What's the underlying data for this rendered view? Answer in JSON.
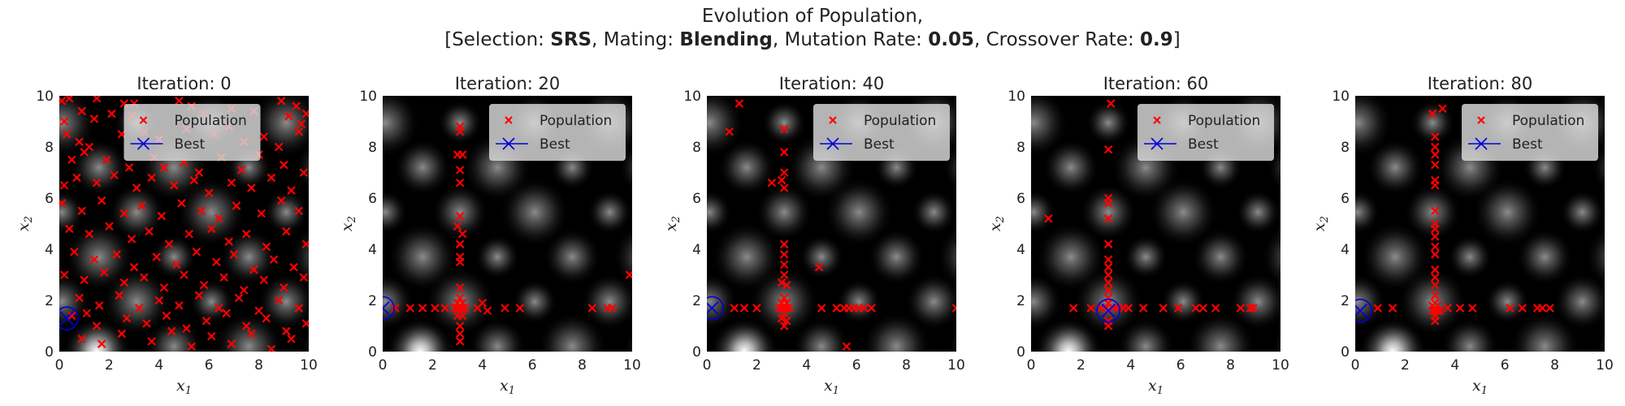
{
  "suptitle": {
    "line1": "Evolution of Population,",
    "selection_label": "Selection:",
    "selection_value": "SRS",
    "mating_label": "Mating:",
    "mating_value": "Blending",
    "mutation_label": "Mutation Rate:",
    "mutation_value": "0.05",
    "crossover_label": "Crossover Rate:",
    "crossover_value": "0.9"
  },
  "colors": {
    "population": "#ff0000",
    "best": "#0000dd",
    "background_peak": "#ffffff",
    "background_low": "#000000"
  },
  "chart_data": [
    {
      "type": "scatter",
      "title": "Iteration:  0",
      "xlabel": "x1",
      "ylabel": "x2",
      "xlim": [
        0,
        10
      ],
      "ylim": [
        0,
        10
      ],
      "xticks": [
        0,
        2,
        4,
        6,
        8,
        10
      ],
      "yticks": [
        0,
        2,
        4,
        6,
        8,
        10
      ],
      "legend": {
        "placement": "top-center",
        "entries": [
          "Population",
          "Best"
        ]
      },
      "best": [
        0.3,
        1.3
      ],
      "population": [
        [
          0.1,
          9.8
        ],
        [
          0.4,
          9.9
        ],
        [
          1.5,
          9.9
        ],
        [
          2.6,
          9.7
        ],
        [
          3.0,
          9.7
        ],
        [
          4.8,
          9.8
        ],
        [
          5.3,
          9.6
        ],
        [
          8.9,
          9.8
        ],
        [
          9.5,
          9.6
        ],
        [
          9.9,
          9.3
        ],
        [
          0.2,
          9.0
        ],
        [
          0.9,
          9.4
        ],
        [
          1.4,
          9.1
        ],
        [
          2.1,
          9.3
        ],
        [
          2.9,
          9.2
        ],
        [
          5.8,
          9.3
        ],
        [
          6.9,
          9.5
        ],
        [
          7.8,
          9.4
        ],
        [
          9.2,
          9.2
        ],
        [
          9.7,
          8.9
        ],
        [
          0.3,
          8.5
        ],
        [
          0.8,
          8.2
        ],
        [
          1.2,
          8.0
        ],
        [
          2.5,
          8.5
        ],
        [
          3.4,
          8.6
        ],
        [
          4.0,
          8.3
        ],
        [
          5.1,
          8.7
        ],
        [
          6.2,
          8.5
        ],
        [
          6.8,
          8.8
        ],
        [
          7.4,
          8.2
        ],
        [
          8.2,
          8.4
        ],
        [
          8.8,
          8.0
        ],
        [
          9.6,
          8.6
        ],
        [
          0.5,
          7.5
        ],
        [
          1.0,
          7.8
        ],
        [
          1.9,
          7.5
        ],
        [
          2.8,
          7.2
        ],
        [
          3.8,
          7.6
        ],
        [
          4.2,
          7.2
        ],
        [
          5.0,
          7.4
        ],
        [
          5.6,
          7.0
        ],
        [
          6.5,
          7.6
        ],
        [
          7.3,
          7.1
        ],
        [
          8.0,
          7.7
        ],
        [
          9.0,
          7.3
        ],
        [
          9.8,
          7.0
        ],
        [
          0.2,
          6.5
        ],
        [
          0.7,
          6.8
        ],
        [
          1.5,
          6.6
        ],
        [
          2.2,
          6.9
        ],
        [
          3.1,
          6.4
        ],
        [
          3.7,
          6.8
        ],
        [
          4.6,
          6.5
        ],
        [
          5.4,
          6.7
        ],
        [
          6.0,
          6.2
        ],
        [
          6.9,
          6.6
        ],
        [
          7.7,
          6.4
        ],
        [
          8.5,
          6.8
        ],
        [
          9.3,
          6.3
        ],
        [
          0.1,
          5.8
        ],
        [
          0.9,
          5.5
        ],
        [
          1.7,
          5.9
        ],
        [
          2.6,
          5.4
        ],
        [
          3.3,
          5.7
        ],
        [
          4.1,
          5.3
        ],
        [
          4.9,
          5.8
        ],
        [
          5.7,
          5.5
        ],
        [
          6.4,
          5.2
        ],
        [
          7.1,
          5.7
        ],
        [
          8.1,
          5.4
        ],
        [
          8.9,
          5.9
        ],
        [
          9.6,
          5.5
        ],
        [
          0.4,
          4.8
        ],
        [
          1.2,
          4.6
        ],
        [
          2.0,
          4.9
        ],
        [
          2.9,
          4.4
        ],
        [
          3.6,
          4.7
        ],
        [
          4.4,
          4.2
        ],
        [
          5.2,
          4.6
        ],
        [
          6.1,
          4.8
        ],
        [
          6.8,
          4.3
        ],
        [
          7.5,
          4.6
        ],
        [
          8.3,
          4.1
        ],
        [
          9.1,
          4.7
        ],
        [
          9.9,
          4.2
        ],
        [
          0.6,
          3.9
        ],
        [
          1.4,
          3.6
        ],
        [
          2.3,
          3.8
        ],
        [
          3.0,
          3.3
        ],
        [
          3.9,
          3.7
        ],
        [
          4.7,
          3.4
        ],
        [
          5.5,
          3.9
        ],
        [
          6.3,
          3.5
        ],
        [
          7.0,
          3.8
        ],
        [
          7.8,
          3.2
        ],
        [
          8.6,
          3.6
        ],
        [
          9.4,
          3.3
        ],
        [
          0.2,
          3.0
        ],
        [
          1.0,
          2.8
        ],
        [
          1.8,
          3.1
        ],
        [
          2.6,
          2.7
        ],
        [
          3.4,
          2.9
        ],
        [
          4.2,
          2.5
        ],
        [
          5.0,
          3.0
        ],
        [
          5.8,
          2.6
        ],
        [
          6.6,
          2.9
        ],
        [
          7.4,
          2.4
        ],
        [
          8.2,
          2.8
        ],
        [
          9.0,
          2.5
        ],
        [
          9.8,
          2.9
        ],
        [
          0.8,
          2.1
        ],
        [
          1.6,
          1.8
        ],
        [
          2.4,
          2.2
        ],
        [
          3.2,
          1.7
        ],
        [
          4.0,
          2.0
        ],
        [
          4.8,
          1.8
        ],
        [
          5.6,
          2.2
        ],
        [
          6.4,
          1.7
        ],
        [
          7.2,
          2.1
        ],
        [
          8.0,
          1.6
        ],
        [
          8.8,
          2.0
        ],
        [
          9.6,
          1.7
        ],
        [
          0.5,
          1.4
        ],
        [
          1.1,
          1.5
        ],
        [
          1.5,
          1.0
        ],
        [
          2.7,
          1.3
        ],
        [
          3.5,
          1.1
        ],
        [
          4.3,
          1.4
        ],
        [
          5.1,
          0.9
        ],
        [
          5.9,
          1.2
        ],
        [
          6.7,
          1.5
        ],
        [
          7.5,
          1.0
        ],
        [
          8.3,
          1.3
        ],
        [
          9.1,
          0.8
        ],
        [
          9.9,
          1.1
        ],
        [
          0.9,
          0.5
        ],
        [
          1.7,
          0.3
        ],
        [
          2.5,
          0.7
        ],
        [
          3.7,
          0.4
        ],
        [
          4.5,
          0.8
        ],
        [
          5.3,
          0.2
        ],
        [
          6.1,
          0.6
        ],
        [
          6.9,
          0.3
        ],
        [
          7.7,
          0.7
        ],
        [
          8.5,
          0.1
        ],
        [
          9.3,
          0.5
        ]
      ]
    },
    {
      "type": "scatter",
      "title": "Iteration:  20",
      "xlabel": "x1",
      "ylabel": "x2",
      "xlim": [
        0,
        10
      ],
      "ylim": [
        0,
        10
      ],
      "xticks": [
        0,
        2,
        4,
        6,
        8,
        10
      ],
      "yticks": [
        0,
        2,
        4,
        6,
        8,
        10
      ],
      "legend": {
        "placement": "top-right",
        "entries": [
          "Population",
          "Best"
        ]
      },
      "best": [
        0.0,
        1.7
      ],
      "population": [
        [
          3.1,
          8.8
        ],
        [
          3.1,
          8.6
        ],
        [
          3.0,
          7.7
        ],
        [
          3.2,
          7.7
        ],
        [
          3.1,
          7.1
        ],
        [
          3.1,
          6.6
        ],
        [
          3.1,
          5.3
        ],
        [
          3.0,
          4.9
        ],
        [
          3.2,
          4.6
        ],
        [
          3.1,
          4.2
        ],
        [
          3.1,
          3.7
        ],
        [
          3.1,
          3.5
        ],
        [
          3.1,
          2.5
        ],
        [
          3.1,
          2.1
        ],
        [
          3.0,
          1.9
        ],
        [
          3.2,
          1.9
        ],
        [
          2.9,
          1.7
        ],
        [
          3.0,
          1.7
        ],
        [
          3.1,
          1.7
        ],
        [
          3.2,
          1.7
        ],
        [
          3.3,
          1.7
        ],
        [
          3.1,
          1.5
        ],
        [
          3.0,
          1.4
        ],
        [
          3.2,
          1.4
        ],
        [
          3.1,
          1.0
        ],
        [
          3.1,
          0.7
        ],
        [
          3.1,
          0.4
        ],
        [
          0.5,
          1.7
        ],
        [
          1.1,
          1.7
        ],
        [
          1.6,
          1.7
        ],
        [
          2.1,
          1.7
        ],
        [
          2.5,
          1.7
        ],
        [
          3.8,
          1.7
        ],
        [
          4.2,
          1.6
        ],
        [
          4.0,
          1.9
        ],
        [
          4.9,
          1.7
        ],
        [
          5.5,
          1.7
        ],
        [
          8.4,
          1.7
        ],
        [
          9.0,
          1.7
        ],
        [
          9.2,
          1.7
        ],
        [
          9.9,
          3.0
        ]
      ]
    },
    {
      "type": "scatter",
      "title": "Iteration:  40",
      "xlabel": "x1",
      "ylabel": "x2",
      "xlim": [
        0,
        10
      ],
      "ylim": [
        0,
        10
      ],
      "xticks": [
        0,
        2,
        4,
        6,
        8,
        10
      ],
      "yticks": [
        0,
        2,
        4,
        6,
        8,
        10
      ],
      "legend": {
        "placement": "top-right",
        "entries": [
          "Population",
          "Best"
        ]
      },
      "best": [
        0.2,
        1.7
      ],
      "population": [
        [
          1.3,
          9.7
        ],
        [
          0.9,
          8.6
        ],
        [
          3.1,
          8.7
        ],
        [
          3.1,
          7.8
        ],
        [
          3.1,
          7.0
        ],
        [
          2.6,
          6.6
        ],
        [
          3.0,
          6.7
        ],
        [
          3.1,
          6.4
        ],
        [
          3.1,
          4.2
        ],
        [
          3.1,
          3.8
        ],
        [
          3.1,
          3.4
        ],
        [
          3.1,
          3.0
        ],
        [
          3.0,
          2.7
        ],
        [
          3.2,
          2.6
        ],
        [
          4.5,
          3.3
        ],
        [
          3.1,
          2.1
        ],
        [
          3.0,
          1.9
        ],
        [
          3.2,
          1.9
        ],
        [
          2.9,
          1.7
        ],
        [
          3.0,
          1.7
        ],
        [
          3.1,
          1.7
        ],
        [
          3.2,
          1.7
        ],
        [
          3.3,
          1.7
        ],
        [
          3.1,
          1.5
        ],
        [
          3.0,
          1.3
        ],
        [
          3.2,
          1.2
        ],
        [
          3.1,
          1.0
        ],
        [
          1.1,
          1.7
        ],
        [
          1.5,
          1.7
        ],
        [
          2.0,
          1.7
        ],
        [
          4.6,
          1.7
        ],
        [
          5.2,
          1.7
        ],
        [
          5.5,
          1.7
        ],
        [
          5.7,
          1.7
        ],
        [
          5.9,
          1.7
        ],
        [
          6.1,
          1.7
        ],
        [
          6.3,
          1.7
        ],
        [
          6.6,
          1.7
        ],
        [
          5.6,
          0.2
        ],
        [
          10.0,
          1.7
        ]
      ]
    },
    {
      "type": "scatter",
      "title": "Iteration:  60",
      "xlabel": "x1",
      "ylabel": "x2",
      "xlim": [
        0,
        10
      ],
      "ylim": [
        0,
        10
      ],
      "xticks": [
        0,
        2,
        4,
        6,
        8,
        10
      ],
      "yticks": [
        0,
        2,
        4,
        6,
        8,
        10
      ],
      "legend": {
        "placement": "top-right",
        "entries": [
          "Population",
          "Best"
        ]
      },
      "best": [
        3.1,
        1.6
      ],
      "population": [
        [
          3.2,
          9.7
        ],
        [
          3.1,
          7.9
        ],
        [
          3.1,
          6.0
        ],
        [
          3.1,
          5.8
        ],
        [
          3.1,
          5.2
        ],
        [
          0.7,
          5.2
        ],
        [
          3.1,
          4.2
        ],
        [
          3.1,
          3.6
        ],
        [
          3.1,
          3.3
        ],
        [
          3.1,
          3.0
        ],
        [
          3.1,
          2.7
        ],
        [
          3.1,
          2.4
        ],
        [
          3.1,
          2.1
        ],
        [
          3.1,
          1.9
        ],
        [
          1.7,
          1.7
        ],
        [
          2.4,
          1.7
        ],
        [
          2.8,
          1.7
        ],
        [
          3.0,
          1.7
        ],
        [
          3.1,
          1.6
        ],
        [
          3.3,
          1.7
        ],
        [
          3.5,
          1.7
        ],
        [
          3.7,
          1.7
        ],
        [
          3.9,
          1.7
        ],
        [
          4.5,
          1.7
        ],
        [
          5.3,
          1.7
        ],
        [
          5.9,
          1.7
        ],
        [
          6.6,
          1.7
        ],
        [
          6.9,
          1.7
        ],
        [
          7.4,
          1.7
        ],
        [
          8.4,
          1.7
        ],
        [
          8.8,
          1.7
        ],
        [
          8.9,
          1.7
        ],
        [
          3.1,
          1.2
        ],
        [
          3.1,
          1.0
        ]
      ]
    },
    {
      "type": "scatter",
      "title": "Iteration:  80",
      "xlabel": "x1",
      "ylabel": "x2",
      "xlim": [
        0,
        10
      ],
      "ylim": [
        0,
        10
      ],
      "xticks": [
        0,
        2,
        4,
        6,
        8,
        10
      ],
      "yticks": [
        0,
        2,
        4,
        6,
        8,
        10
      ],
      "legend": {
        "placement": "top-right",
        "entries": [
          "Population",
          "Best"
        ]
      },
      "best": [
        0.2,
        1.6
      ],
      "population": [
        [
          3.5,
          9.5
        ],
        [
          3.1,
          9.3
        ],
        [
          3.2,
          8.4
        ],
        [
          3.2,
          8.0
        ],
        [
          3.2,
          7.7
        ],
        [
          3.2,
          7.3
        ],
        [
          3.2,
          6.7
        ],
        [
          3.2,
          6.5
        ],
        [
          3.2,
          5.5
        ],
        [
          3.2,
          5.0
        ],
        [
          3.2,
          4.8
        ],
        [
          3.2,
          4.5
        ],
        [
          3.2,
          4.1
        ],
        [
          3.2,
          3.8
        ],
        [
          3.2,
          3.2
        ],
        [
          3.2,
          2.9
        ],
        [
          3.2,
          2.6
        ],
        [
          3.2,
          2.2
        ],
        [
          3.2,
          1.9
        ],
        [
          3.1,
          1.8
        ],
        [
          3.3,
          1.8
        ],
        [
          3.1,
          1.6
        ],
        [
          3.2,
          1.6
        ],
        [
          3.3,
          1.6
        ],
        [
          3.4,
          1.6
        ],
        [
          3.2,
          1.4
        ],
        [
          3.2,
          1.2
        ],
        [
          0.9,
          1.7
        ],
        [
          1.5,
          1.7
        ],
        [
          3.7,
          1.7
        ],
        [
          4.2,
          1.7
        ],
        [
          4.7,
          1.7
        ],
        [
          6.2,
          1.7
        ],
        [
          6.7,
          1.7
        ],
        [
          7.3,
          1.7
        ],
        [
          7.5,
          1.7
        ],
        [
          7.8,
          1.7
        ]
      ]
    }
  ]
}
